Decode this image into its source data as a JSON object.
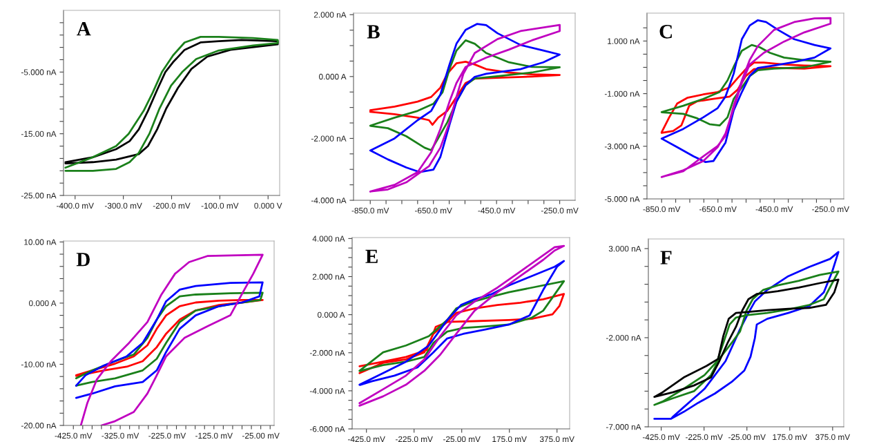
{
  "chart_data": [
    {
      "type": "line",
      "title": "A",
      "xlim": [
        -424,
        24
      ],
      "ylim": [
        -25,
        5
      ],
      "xticks": [
        {
          "value": -400,
          "label": "-400.0 mV"
        },
        {
          "value": -300,
          "label": "-300.0 mV"
        },
        {
          "value": -200,
          "label": "-200.0 mV"
        },
        {
          "value": -100,
          "label": "-100.0 mV"
        },
        {
          "value": 0,
          "label": "0.000 V"
        }
      ],
      "yticks": [
        {
          "value": -25,
          "label": "-25.00 nA"
        },
        {
          "value": -23,
          "label": null
        },
        {
          "value": -21,
          "label": null
        },
        {
          "value": -19,
          "label": null
        },
        {
          "value": -17,
          "label": null
        },
        {
          "value": -15,
          "label": "-15.00 nA"
        },
        {
          "value": -13,
          "label": null
        },
        {
          "value": -11,
          "label": null
        },
        {
          "value": -9,
          "label": null
        },
        {
          "value": -7,
          "label": null
        },
        {
          "value": -5,
          "label": "-5.000 nA"
        },
        {
          "value": -3,
          "label": null
        },
        {
          "value": -1,
          "label": null
        },
        {
          "value": 1,
          "label": null
        },
        {
          "value": 3,
          "label": null
        }
      ],
      "series": [
        {
          "color": "#000000",
          "x": [
            -420,
            -363,
            -315,
            -268,
            -249,
            -230,
            -211,
            -187,
            -159,
            -126,
            -78,
            20,
            20,
            -55,
            -102,
            -140,
            -173,
            -197,
            -213,
            -230,
            -249,
            -268,
            -287,
            -315,
            -363,
            -420
          ],
          "values": [
            -19.8,
            -19.6,
            -19.2,
            -18.3,
            -17.0,
            -14.3,
            -10.9,
            -7.6,
            -4.5,
            -2.5,
            -1.4,
            -0.5,
            0.0,
            0.2,
            0.0,
            -0.2,
            -1.4,
            -3.4,
            -5.0,
            -7.9,
            -11.3,
            -14.3,
            -16.2,
            -17.5,
            -18.8,
            -19.6
          ]
        },
        {
          "color": "#1a801a",
          "x": [
            -420,
            -363,
            -315,
            -287,
            -268,
            -246,
            -225,
            -201,
            -178,
            -149,
            -102,
            -31,
            20,
            20,
            -31,
            -102,
            -140,
            -173,
            -197,
            -220,
            -239,
            -258,
            -289,
            -315,
            -363,
            -420
          ],
          "values": [
            -21.0,
            -21.0,
            -20.7,
            -19.6,
            -18.1,
            -15.0,
            -10.9,
            -7.2,
            -5.0,
            -2.9,
            -1.5,
            -0.7,
            -0.3,
            0.2,
            0.5,
            0.7,
            0.7,
            -0.2,
            -2.3,
            -5.0,
            -8.3,
            -11.3,
            -15.0,
            -17.0,
            -18.8,
            -20.5
          ]
        }
      ]
    },
    {
      "type": "line",
      "title": "B",
      "xlim": [
        -903,
        -201
      ],
      "ylim": [
        -4,
        2.05
      ],
      "xticks": [
        {
          "value": -850,
          "label": "-850.0 mV"
        },
        {
          "value": -800,
          "label": null
        },
        {
          "value": -750,
          "label": null
        },
        {
          "value": -700,
          "label": null
        },
        {
          "value": -650,
          "label": "-650.0 mV"
        },
        {
          "value": -600,
          "label": null
        },
        {
          "value": -550,
          "label": null
        },
        {
          "value": -500,
          "label": null
        },
        {
          "value": -450,
          "label": "-450.0 mV"
        },
        {
          "value": -400,
          "label": null
        },
        {
          "value": -350,
          "label": null
        },
        {
          "value": -300,
          "label": null
        },
        {
          "value": -250,
          "label": "-250.0 mV"
        }
      ],
      "yticks": [
        {
          "value": -4,
          "label": "-4.000 nA"
        },
        {
          "value": -3.5,
          "label": null
        },
        {
          "value": -3,
          "label": null
        },
        {
          "value": -2.5,
          "label": null
        },
        {
          "value": -2,
          "label": "-2.000 nA"
        },
        {
          "value": -1.5,
          "label": null
        },
        {
          "value": -1,
          "label": null
        },
        {
          "value": -0.5,
          "label": null
        },
        {
          "value": 0,
          "label": "0.000 A"
        },
        {
          "value": 0.5,
          "label": null
        },
        {
          "value": 1,
          "label": null
        },
        {
          "value": 1.5,
          "label": null
        },
        {
          "value": 2,
          "label": "2.000 nA"
        }
      ],
      "series": [
        {
          "color": "#ff0000",
          "x": [
            -850,
            -773,
            -700,
            -657,
            -628,
            -606,
            -577,
            -548,
            -519,
            -483,
            -411,
            -338,
            -250,
            -338,
            -447,
            -519,
            -548,
            -577,
            -606,
            -635,
            -653,
            -664,
            -700,
            -773,
            -850
          ],
          "values": [
            -1.09,
            -0.97,
            -0.81,
            -0.66,
            -0.36,
            0.09,
            0.43,
            0.48,
            0.39,
            0.24,
            0.13,
            0.07,
            0.05,
            0.0,
            -0.04,
            -0.07,
            -0.21,
            -0.66,
            -1.11,
            -1.33,
            -1.56,
            -1.41,
            -1.33,
            -1.22,
            -1.14
          ]
        },
        {
          "color": "#1a801a",
          "x": [
            -850,
            -773,
            -700,
            -650,
            -621,
            -599,
            -577,
            -548,
            -519,
            -483,
            -411,
            -338,
            -250,
            -338,
            -447,
            -519,
            -548,
            -577,
            -606,
            -635,
            -657,
            -678,
            -736,
            -794,
            -848
          ],
          "values": [
            -1.59,
            -1.33,
            -1.11,
            -0.88,
            -0.51,
            0.24,
            0.84,
            1.17,
            1.06,
            0.76,
            0.46,
            0.31,
            0.3,
            0.13,
            0.01,
            -0.06,
            -0.28,
            -0.81,
            -1.48,
            -2.0,
            -2.38,
            -2.3,
            -1.93,
            -1.67,
            -1.6
          ]
        },
        {
          "color": "#0000ff",
          "x": [
            -850,
            -773,
            -700,
            -657,
            -628,
            -599,
            -577,
            -548,
            -512,
            -483,
            -447,
            -374,
            -302,
            -250,
            -302,
            -374,
            -483,
            -519,
            -548,
            -577,
            -599,
            -628,
            -650,
            -693,
            -736,
            -794,
            -848
          ],
          "values": [
            -2.39,
            -2.0,
            -1.41,
            -1.11,
            -0.58,
            0.39,
            1.06,
            1.51,
            1.7,
            1.66,
            1.4,
            1.02,
            0.84,
            0.71,
            0.46,
            0.24,
            0.09,
            -0.01,
            -0.28,
            -0.81,
            -1.56,
            -2.6,
            -3.01,
            -3.09,
            -2.94,
            -2.68,
            -2.4
          ]
        },
        {
          "color": "#c000c0",
          "x": [
            -850,
            -773,
            -700,
            -657,
            -628,
            -599,
            -577,
            -548,
            -483,
            -411,
            -338,
            -250,
            -250,
            -374,
            -447,
            -519,
            -555,
            -577,
            -599,
            -628,
            -664,
            -736,
            -794,
            -848
          ],
          "values": [
            -3.72,
            -3.5,
            -3.09,
            -2.45,
            -1.7,
            -0.81,
            -0.21,
            0.31,
            0.61,
            0.87,
            1.17,
            1.47,
            1.67,
            1.47,
            1.21,
            0.76,
            0.09,
            -0.66,
            -1.48,
            -2.3,
            -2.9,
            -3.42,
            -3.65,
            -3.71
          ]
        }
      ]
    },
    {
      "type": "line",
      "title": "C",
      "xlim": [
        -902,
        -203
      ],
      "ylim": [
        -5,
        2.06
      ],
      "xticks": [
        {
          "value": -850,
          "label": "-850.0 mV"
        },
        {
          "value": -800,
          "label": null
        },
        {
          "value": -750,
          "label": null
        },
        {
          "value": -700,
          "label": null
        },
        {
          "value": -650,
          "label": "-650.0 mV"
        },
        {
          "value": -600,
          "label": null
        },
        {
          "value": -550,
          "label": null
        },
        {
          "value": -500,
          "label": null
        },
        {
          "value": -450,
          "label": "-450.0 mV"
        },
        {
          "value": -400,
          "label": null
        },
        {
          "value": -350,
          "label": null
        },
        {
          "value": -300,
          "label": null
        },
        {
          "value": -250,
          "label": "-250.0 mV"
        }
      ],
      "yticks": [
        {
          "value": -5,
          "label": "-5.000 nA"
        },
        {
          "value": -4.5,
          "label": null
        },
        {
          "value": -4,
          "label": null
        },
        {
          "value": -3.5,
          "label": null
        },
        {
          "value": -3,
          "label": "-3.000 nA"
        },
        {
          "value": -2.5,
          "label": null
        },
        {
          "value": -2,
          "label": null
        },
        {
          "value": -1.5,
          "label": null
        },
        {
          "value": -1,
          "label": "-1.000 nA"
        },
        {
          "value": -0.5,
          "label": null
        },
        {
          "value": 0,
          "label": null
        },
        {
          "value": 0.5,
          "label": null
        },
        {
          "value": 1,
          "label": "1.000 nA"
        },
        {
          "value": 1.5,
          "label": null
        }
      ],
      "series": [
        {
          "color": "#ff0000",
          "x": [
            -850,
            -823,
            -795,
            -759,
            -702,
            -651,
            -608,
            -580,
            -551,
            -522,
            -487,
            -415,
            -343,
            -250,
            -343,
            -451,
            -522,
            -551,
            -580,
            -608,
            -666,
            -723,
            -752,
            -780,
            -809,
            -850
          ],
          "values": [
            -2.47,
            -1.9,
            -1.38,
            -1.16,
            -1.03,
            -0.94,
            -0.76,
            -0.41,
            -0.07,
            0.18,
            0.18,
            0.11,
            0.07,
            0.04,
            -0.05,
            -0.02,
            -0.07,
            -0.33,
            -0.85,
            -1.11,
            -1.2,
            -1.29,
            -1.46,
            -2.21,
            -2.42,
            -2.49
          ]
        },
        {
          "color": "#1a801a",
          "x": [
            -850,
            -773,
            -702,
            -644,
            -616,
            -594,
            -565,
            -530,
            -501,
            -465,
            -415,
            -343,
            -250,
            -343,
            -451,
            -508,
            -537,
            -565,
            -594,
            -616,
            -644,
            -680,
            -723,
            -773,
            -848
          ],
          "values": [
            -1.7,
            -1.46,
            -1.2,
            -0.94,
            -0.5,
            0.02,
            0.63,
            0.85,
            0.76,
            0.55,
            0.37,
            0.27,
            0.21,
            0.0,
            -0.05,
            -0.11,
            -0.33,
            -0.76,
            -1.2,
            -1.9,
            -2.21,
            -2.16,
            -1.94,
            -1.77,
            -1.71
          ]
        },
        {
          "color": "#0000ff",
          "x": [
            -850,
            -773,
            -702,
            -651,
            -623,
            -594,
            -565,
            -537,
            -508,
            -479,
            -436,
            -379,
            -307,
            -250,
            -307,
            -379,
            -451,
            -508,
            -537,
            -565,
            -594,
            -623,
            -666,
            -694,
            -737,
            -795,
            -848
          ],
          "values": [
            -2.71,
            -2.34,
            -1.9,
            -1.55,
            -1.11,
            -0.24,
            1.07,
            1.59,
            1.79,
            1.72,
            1.42,
            1.07,
            0.85,
            0.72,
            0.37,
            0.2,
            0.07,
            -0.02,
            -0.33,
            -0.94,
            -1.64,
            -2.86,
            -3.56,
            -3.6,
            -3.38,
            -3.03,
            -2.72
          ]
        },
        {
          "color": "#c000c0",
          "x": [
            -850,
            -773,
            -702,
            -651,
            -623,
            -594,
            -565,
            -537,
            -487,
            -415,
            -343,
            -250,
            -250,
            -307,
            -379,
            -451,
            -508,
            -537,
            -565,
            -594,
            -623,
            -651,
            -702,
            -773,
            -848
          ],
          "values": [
            -4.17,
            -3.91,
            -3.56,
            -3.03,
            -2.51,
            -1.55,
            -0.59,
            0.11,
            0.55,
            0.98,
            1.33,
            1.66,
            1.87,
            1.86,
            1.72,
            1.42,
            0.81,
            0.28,
            -0.5,
            -1.46,
            -2.6,
            -2.99,
            -3.38,
            -3.95,
            -4.16
          ]
        }
      ]
    },
    {
      "type": "line",
      "title": "D",
      "xlim": [
        -446,
        3.5
      ],
      "ylim": [
        -20,
        10.15
      ],
      "xticks": [
        {
          "value": -425,
          "label": "-425.0 mV"
        },
        {
          "value": -405,
          "label": null
        },
        {
          "value": -385,
          "label": null
        },
        {
          "value": -365,
          "label": null
        },
        {
          "value": -345,
          "label": null
        },
        {
          "value": -325,
          "label": "-325.0 mV"
        },
        {
          "value": -305,
          "label": null
        },
        {
          "value": -285,
          "label": null
        },
        {
          "value": -265,
          "label": null
        },
        {
          "value": -245,
          "label": null
        },
        {
          "value": -225,
          "label": "-225.0 mV"
        },
        {
          "value": -205,
          "label": null
        },
        {
          "value": -185,
          "label": null
        },
        {
          "value": -165,
          "label": null
        },
        {
          "value": -145,
          "label": null
        },
        {
          "value": -125,
          "label": "-125.0 mV"
        },
        {
          "value": -105,
          "label": null
        },
        {
          "value": -85,
          "label": null
        },
        {
          "value": -65,
          "label": null
        },
        {
          "value": -45,
          "label": null
        },
        {
          "value": -25,
          "label": "-25.00 mV"
        },
        {
          "value": -5,
          "label": null
        }
      ],
      "yticks": [
        {
          "value": -20,
          "label": "-20.00 nA"
        },
        {
          "value": -18,
          "label": null
        },
        {
          "value": -16,
          "label": null
        },
        {
          "value": -14,
          "label": null
        },
        {
          "value": -12,
          "label": null
        },
        {
          "value": -10,
          "label": "-10.00 nA"
        },
        {
          "value": -8,
          "label": null
        },
        {
          "value": -6,
          "label": null
        },
        {
          "value": -4,
          "label": null
        },
        {
          "value": -2,
          "label": null
        },
        {
          "value": 0,
          "label": "0.000 A"
        },
        {
          "value": 2,
          "label": null
        },
        {
          "value": 4,
          "label": null
        },
        {
          "value": 6,
          "label": null
        },
        {
          "value": 8,
          "label": null
        },
        {
          "value": 10,
          "label": "10.00 nA"
        }
      ],
      "series": [
        {
          "color": "#ff0000",
          "x": [
            -419,
            -385,
            -336,
            -296,
            -267,
            -247,
            -227,
            -198,
            -164,
            -114,
            -65,
            -21,
            -65,
            -114,
            -164,
            -198,
            -227,
            -247,
            -277,
            -311,
            -360,
            -419
          ],
          "values": [
            -11.8,
            -11.0,
            -9.9,
            -8.7,
            -6.9,
            -4.2,
            -2.0,
            -0.5,
            0.1,
            0.4,
            0.5,
            0.5,
            0.1,
            -0.3,
            -1.2,
            -2.7,
            -5.0,
            -7.2,
            -9.5,
            -10.4,
            -11.0,
            -11.9
          ]
        },
        {
          "color": "#1a801a",
          "x": [
            -419,
            -385,
            -336,
            -296,
            -267,
            -247,
            -227,
            -198,
            -164,
            -90,
            -21,
            -26,
            -90,
            -164,
            -198,
            -227,
            -247,
            -277,
            -336,
            -385,
            -419
          ],
          "values": [
            -12.3,
            -11.0,
            -9.5,
            -8.4,
            -5.7,
            -2.7,
            -0.5,
            1.1,
            1.4,
            1.6,
            1.7,
            0.5,
            -0.2,
            -1.2,
            -3.1,
            -6.5,
            -9.1,
            -11.0,
            -12.3,
            -12.9,
            -13.5
          ]
        },
        {
          "color": "#0000ff",
          "x": [
            -419,
            -399,
            -360,
            -311,
            -277,
            -247,
            -227,
            -198,
            -164,
            -90,
            -21,
            -28,
            -65,
            -114,
            -164,
            -198,
            -227,
            -247,
            -277,
            -336,
            -385,
            -419
          ],
          "values": [
            -13.5,
            -11.8,
            -10.2,
            -8.7,
            -6.5,
            -2.7,
            0.3,
            2.2,
            2.8,
            3.3,
            3.4,
            1.1,
            0.1,
            -0.5,
            -2.0,
            -4.2,
            -8.0,
            -11.0,
            -12.9,
            -13.6,
            -14.8,
            -15.5
          ]
        },
        {
          "color": "#c000c0",
          "x": [
            -409,
            -395,
            -375,
            -345,
            -306,
            -267,
            -237,
            -208,
            -178,
            -139,
            -90,
            -21,
            -41,
            -60,
            -90,
            -139,
            -188,
            -227,
            -247,
            -267,
            -296,
            -336,
            -365
          ],
          "values": [
            -20,
            -16.3,
            -12.5,
            -9.5,
            -6.5,
            -3.1,
            1.4,
            4.8,
            6.7,
            7.7,
            7.8,
            7.9,
            4.8,
            2.2,
            -2.0,
            -3.8,
            -5.7,
            -8.7,
            -11.8,
            -14.8,
            -17.8,
            -19.3,
            -20
          ]
        }
      ]
    },
    {
      "type": "line",
      "title": "E",
      "xlim": [
        -485,
        428
      ],
      "ylim": [
        -6,
        4.05
      ],
      "xticks": [
        {
          "value": -425,
          "label": "-425.0 mV"
        },
        {
          "value": -225,
          "label": "-225.0 mV"
        },
        {
          "value": -25,
          "label": "-25.00 mV"
        },
        {
          "value": 175,
          "label": "175.0 mV"
        },
        {
          "value": 375,
          "label": "375.0 mV"
        }
      ],
      "yticks": [
        {
          "value": -6,
          "label": "-6.000 nA"
        },
        {
          "value": -5.5,
          "label": null
        },
        {
          "value": -5,
          "label": null
        },
        {
          "value": -4.5,
          "label": null
        },
        {
          "value": -4,
          "label": "-4.000 nA"
        },
        {
          "value": -3.5,
          "label": null
        },
        {
          "value": -3,
          "label": null
        },
        {
          "value": -2.5,
          "label": null
        },
        {
          "value": -2,
          "label": "-2.000 nA"
        },
        {
          "value": -1.5,
          "label": null
        },
        {
          "value": -1,
          "label": null
        },
        {
          "value": -0.5,
          "label": null
        },
        {
          "value": 0,
          "label": "0.000 A"
        },
        {
          "value": 0.5,
          "label": null
        },
        {
          "value": 1,
          "label": null
        },
        {
          "value": 1.5,
          "label": null
        },
        {
          "value": 2,
          "label": "2.000 nA"
        },
        {
          "value": 2.5,
          "label": null
        },
        {
          "value": 3,
          "label": null
        },
        {
          "value": 3.5,
          "label": null
        },
        {
          "value": 4,
          "label": "4.000 nA"
        }
      ],
      "series": [
        {
          "color": "#ff0000",
          "x": [
            -454,
            -355,
            -259,
            -172,
            -134,
            -86,
            -48,
            29,
            125,
            221,
            317,
            404,
            385,
            356,
            269,
            173,
            29,
            -86,
            -144,
            -182,
            -259,
            -355,
            -454
          ],
          "values": [
            -2.71,
            -2.47,
            -2.22,
            -1.86,
            -0.64,
            -0.4,
            0.09,
            0.33,
            0.51,
            0.63,
            0.81,
            1.09,
            0.45,
            0.02,
            -0.22,
            -0.28,
            -0.34,
            -0.38,
            -1.01,
            -1.98,
            -2.35,
            -2.53,
            -3.07
          ]
        },
        {
          "color": "#1a801a",
          "x": [
            -454,
            -355,
            -259,
            -163,
            -86,
            -48,
            10,
            77,
            173,
            269,
            404,
            365,
            317,
            269,
            173,
            77,
            -19,
            -86,
            -144,
            -182,
            -259,
            -355,
            -452
          ],
          "values": [
            -2.95,
            -1.98,
            -1.62,
            -1.13,
            -0.28,
            0.33,
            0.63,
            0.87,
            1.18,
            1.42,
            1.76,
            1.06,
            0.21,
            -0.16,
            -0.52,
            -0.62,
            -0.7,
            -0.89,
            -1.49,
            -2.22,
            -2.47,
            -2.65,
            -2.96
          ]
        },
        {
          "color": "#0000ff",
          "x": [
            -454,
            -355,
            -259,
            -163,
            -86,
            -28,
            29,
            97,
            173,
            269,
            365,
            404,
            375,
            317,
            260,
            173,
            77,
            -19,
            -86,
            -144,
            -211,
            -307,
            -403,
            -452
          ],
          "values": [
            -3.68,
            -3.07,
            -2.47,
            -1.62,
            -0.28,
            0.51,
            0.81,
            1.06,
            1.54,
            2.03,
            2.52,
            2.82,
            2.52,
            1.3,
            -0.04,
            -0.52,
            -0.77,
            -1.01,
            -1.25,
            -1.98,
            -2.77,
            -3.2,
            -3.5,
            -3.69
          ]
        },
        {
          "color": "#c000c0",
          "x": [
            -454,
            -355,
            -259,
            -182,
            -115,
            -48,
            29,
            125,
            221,
            317,
            365,
            404,
            365,
            317,
            221,
            125,
            29,
            -48,
            -115,
            -182,
            -259,
            -355,
            -454
          ],
          "values": [
            -4.65,
            -3.92,
            -3.2,
            -2.35,
            -1.13,
            -0.04,
            0.69,
            1.42,
            2.27,
            3.12,
            3.55,
            3.61,
            3.37,
            2.88,
            2.03,
            1.18,
            0.21,
            -1.01,
            -2.1,
            -2.95,
            -3.68,
            -4.29,
            -4.78
          ]
        }
      ]
    },
    {
      "type": "line",
      "title": "F",
      "xlim": [
        -485,
        427
      ],
      "ylim": [
        -7,
        3.54
      ],
      "xticks": [
        {
          "value": -425,
          "label": "-425.0 mV"
        },
        {
          "value": -225,
          "label": "-225.0 mV"
        },
        {
          "value": -25,
          "label": "-25.00 mV"
        },
        {
          "value": 175,
          "label": "175.0 mV"
        },
        {
          "value": 375,
          "label": "375.0 mV"
        }
      ],
      "yticks": [
        {
          "value": -7,
          "label": "-7.000 nA"
        },
        {
          "value": -6,
          "label": null
        },
        {
          "value": -5,
          "label": null
        },
        {
          "value": -4,
          "label": null
        },
        {
          "value": -3,
          "label": null
        },
        {
          "value": -2,
          "label": "-2.000 nA"
        },
        {
          "value": -1,
          "label": null
        },
        {
          "value": 0,
          "label": null
        },
        {
          "value": 1,
          "label": null
        },
        {
          "value": 2,
          "label": null
        },
        {
          "value": 3,
          "label": "3.000 nA"
        }
      ],
      "series": [
        {
          "color": "#0000ff",
          "x": [
            -457,
            -379,
            -320,
            -252,
            -174,
            -96,
            -37,
            -8,
            12,
            21,
            70,
            168,
            266,
            334,
            373,
            402,
            363,
            266,
            168,
            70,
            12,
            -18,
            -57,
            -86,
            -125,
            -174,
            -223,
            -272,
            -320,
            -369,
            -379
          ],
          "values": [
            -6.55,
            -6.55,
            -6.16,
            -5.65,
            -5.13,
            -4.48,
            -3.84,
            -3.06,
            -2.03,
            -1.26,
            -0.94,
            -0.61,
            -0.23,
            0.55,
            1.71,
            2.81,
            2.42,
            1.97,
            1.45,
            0.68,
            0.03,
            -0.61,
            -1.52,
            -2.29,
            -3.32,
            -4.1,
            -4.87,
            -5.39,
            -5.9,
            -6.42,
            -6.55
          ]
        },
        {
          "color": "#1a801a",
          "x": [
            -457,
            -369,
            -272,
            -193,
            -154,
            -96,
            -57,
            -27,
            2,
            51,
            119,
            217,
            314,
            402,
            373,
            334,
            266,
            168,
            70,
            -27,
            -76,
            -106,
            -135,
            -164,
            -223,
            -320,
            -418,
            -455
          ],
          "values": [
            -5.77,
            -5.39,
            -5.0,
            -4.1,
            -3.19,
            -2.29,
            -1.65,
            -0.48,
            0.16,
            0.68,
            0.94,
            1.19,
            1.52,
            1.71,
            1.06,
            0.16,
            -0.16,
            -0.42,
            -0.61,
            -0.74,
            -0.87,
            -1.26,
            -2.29,
            -3.32,
            -4.1,
            -4.87,
            -5.58,
            -5.76
          ]
        },
        {
          "color": "#000000",
          "x": [
            -457,
            -369,
            -272,
            -193,
            -154,
            -115,
            -76,
            -47,
            -18,
            21,
            119,
            217,
            314,
            402,
            383,
            344,
            266,
            168,
            70,
            -18,
            -76,
            -110,
            -135,
            -159,
            -213,
            -320,
            -418,
            -455
          ],
          "values": [
            -5.32,
            -5.06,
            -4.68,
            -4.23,
            -3.32,
            -2.29,
            -1.39,
            -0.48,
            0.16,
            0.45,
            0.61,
            0.81,
            1.06,
            1.26,
            0.55,
            -0.16,
            -0.33,
            -0.38,
            -0.46,
            -0.55,
            -0.61,
            -0.94,
            -1.9,
            -3.19,
            -3.58,
            -4.23,
            -5.06,
            -5.31
          ]
        }
      ]
    }
  ]
}
